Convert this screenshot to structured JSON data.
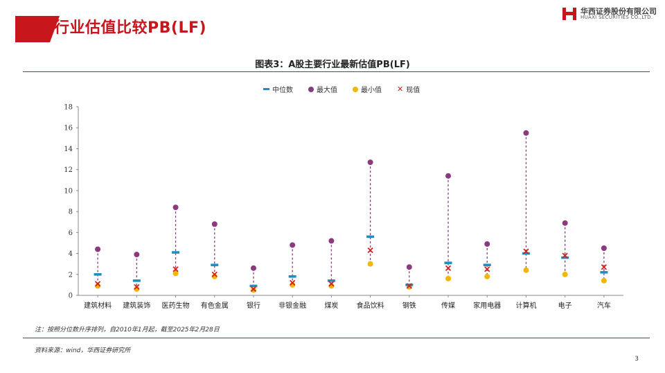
{
  "header": {
    "title": "行业估值比较PB(LF)",
    "logo_cn": "华西证券股份有限公司",
    "logo_en": "HUAXI SECURITIES CO.,LTD."
  },
  "chart_title": "图表3：A股主要行业最新估值PB(LF)",
  "legend": {
    "median": "中位数",
    "max": "最大值",
    "min": "最小值",
    "current": "现值"
  },
  "colors": {
    "brand_red": "#c8161d",
    "median": "#1f8fbf",
    "max": "#8b3a7e",
    "min": "#f2b705",
    "current": "#d42020",
    "range_line": "#8b3a7e"
  },
  "chart_data": {
    "type": "scatter",
    "categories": [
      "建筑材料",
      "建筑装饰",
      "医药生物",
      "有色金属",
      "银行",
      "非银金融",
      "煤炭",
      "食品饮料",
      "钢铁",
      "传媒",
      "家用电器",
      "计算机",
      "电子",
      "汽车"
    ],
    "series": [
      {
        "name": "中位数",
        "values": [
          2.0,
          1.4,
          4.1,
          2.9,
          0.9,
          1.8,
          1.4,
          5.6,
          1.0,
          3.1,
          2.9,
          4.0,
          3.6,
          2.2
        ]
      },
      {
        "name": "最大值",
        "values": [
          4.4,
          3.9,
          8.4,
          6.8,
          2.6,
          4.8,
          5.2,
          12.7,
          2.7,
          11.4,
          4.9,
          15.5,
          6.9,
          4.5
        ]
      },
      {
        "name": "最小值",
        "values": [
          0.9,
          0.6,
          2.1,
          1.8,
          0.5,
          1.0,
          0.9,
          3.0,
          0.8,
          1.6,
          1.8,
          2.4,
          2.0,
          1.4
        ]
      },
      {
        "name": "现值",
        "values": [
          1.1,
          0.8,
          2.5,
          2.0,
          0.6,
          1.2,
          1.1,
          4.3,
          0.9,
          2.6,
          2.5,
          4.2,
          3.8,
          2.7
        ]
      }
    ],
    "ylim": [
      0,
      18
    ],
    "yticks": [
      "0",
      "2",
      "4",
      "6",
      "8",
      "10",
      "12",
      "14",
      "16",
      "18"
    ],
    "grid": false,
    "legend_position": "top"
  },
  "footnote": "注：按照分位数升序排列，自2010年1月起，截至2025年2月28日",
  "source": "资料来源：wind，华西证券研究所",
  "page_number": "3"
}
